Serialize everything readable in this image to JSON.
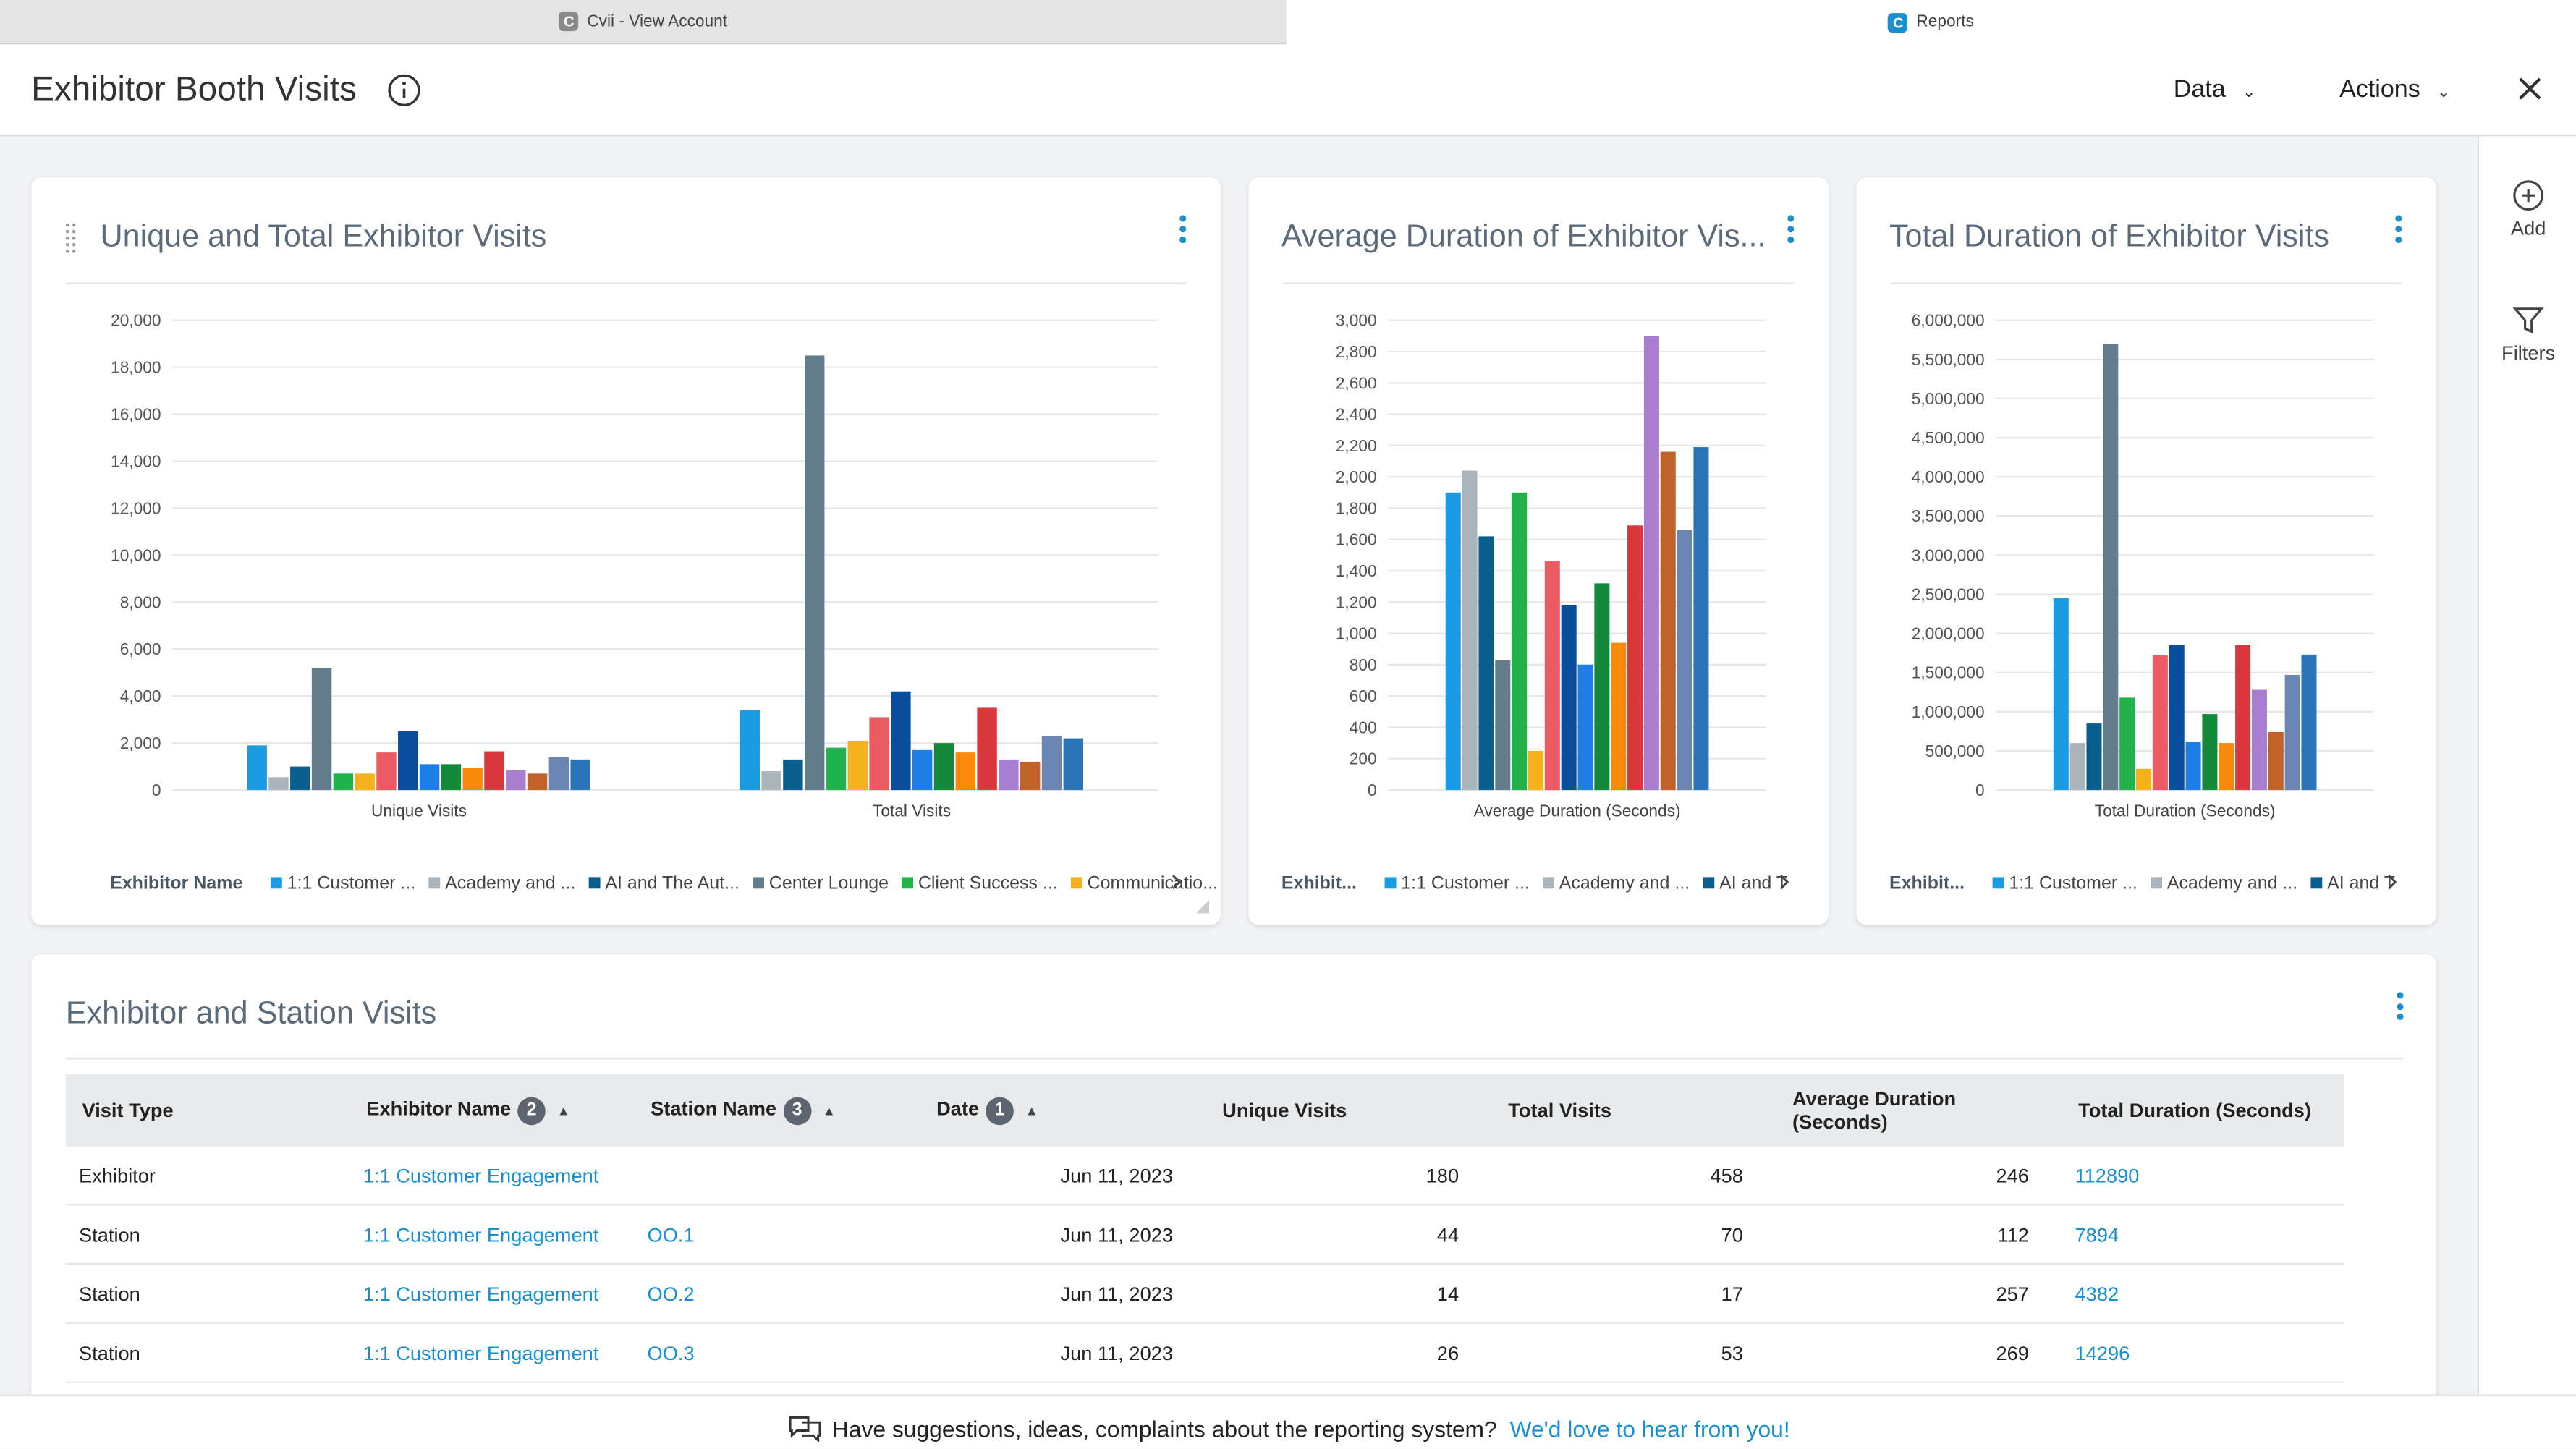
{
  "tabs": [
    {
      "label": "Cvii - View Account",
      "icon": "C"
    },
    {
      "label": "Reports",
      "icon": "C"
    }
  ],
  "header": {
    "title": "Exhibitor Booth Visits",
    "menus": [
      "Data",
      "Actions"
    ]
  },
  "sidebar": [
    {
      "label": "Add"
    },
    {
      "label": "Filters"
    }
  ],
  "chart_data": [
    {
      "type": "bar",
      "title": "Unique and Total Exhibitor Visits",
      "categories": [
        "Unique Visits",
        "Total Visits"
      ],
      "ylim": [
        0,
        20000
      ],
      "yticks": [
        0,
        {
          "value": 2000,
          "label": "2,000"
        },
        {
          "value": 4000,
          "label": "4,000"
        },
        {
          "value": 6000,
          "label": "6,000"
        },
        {
          "value": 8000,
          "label": "8,000"
        },
        {
          "value": 10000,
          "label": "10,000"
        },
        {
          "value": 12000,
          "label": "12,000"
        },
        {
          "value": 14000,
          "label": "14,000"
        },
        {
          "value": 16000,
          "label": "16,000"
        },
        {
          "value": 18000,
          "label": "18,000"
        },
        {
          "value": 20000,
          "label": "20,000"
        }
      ],
      "grid": true,
      "legend_title": "Exhibitor Name",
      "series": [
        {
          "name": "1:1 Customer ...",
          "color": "#1a9ae0",
          "values": [
            1900,
            3400
          ]
        },
        {
          "name": "Academy and ...",
          "color": "#a9b4bd",
          "values": [
            550,
            800
          ]
        },
        {
          "name": "AI and The Aut...",
          "color": "#0a5e8c",
          "values": [
            1000,
            1300
          ]
        },
        {
          "name": "Center Lounge",
          "color": "#627c8c",
          "values": [
            5200,
            18500
          ]
        },
        {
          "name": "Client Success ...",
          "color": "#21b24b",
          "values": [
            700,
            1800
          ]
        },
        {
          "name": "Communicatio...",
          "color": "#f3b21b",
          "values": [
            700,
            2100
          ]
        },
        {
          "color": "#eb5b63",
          "values": [
            1600,
            3100
          ]
        },
        {
          "color": "#0a4f9e",
          "values": [
            2500,
            4200
          ]
        },
        {
          "color": "#1e7ee6",
          "values": [
            1100,
            1700
          ]
        },
        {
          "color": "#13893a",
          "values": [
            1100,
            2000
          ]
        },
        {
          "color": "#f98a0b",
          "values": [
            950,
            1600
          ]
        },
        {
          "color": "#d9373b",
          "values": [
            1650,
            3500
          ]
        },
        {
          "color": "#a97ed1",
          "values": [
            850,
            1300
          ]
        },
        {
          "color": "#c0622a",
          "values": [
            700,
            1200
          ]
        },
        {
          "color": "#6b86b5",
          "values": [
            1400,
            2300
          ]
        },
        {
          "color": "#2a74b7",
          "values": [
            1300,
            2200
          ]
        }
      ]
    },
    {
      "type": "bar",
      "title": "Average Duration of Exhibitor Vis...",
      "categories": [
        "Average Duration (Seconds)"
      ],
      "ylim": [
        0,
        3000
      ],
      "yticks": [
        0,
        200,
        400,
        600,
        800,
        {
          "value": 1000,
          "label": "1,000"
        },
        {
          "value": 1200,
          "label": "1,200"
        },
        {
          "value": 1400,
          "label": "1,400"
        },
        {
          "value": 1600,
          "label": "1,600"
        },
        {
          "value": 1800,
          "label": "1,800"
        },
        {
          "value": 2000,
          "label": "2,000"
        },
        {
          "value": 2200,
          "label": "2,200"
        },
        {
          "value": 2400,
          "label": "2,400"
        },
        {
          "value": 2600,
          "label": "2,600"
        },
        {
          "value": 2800,
          "label": "2,800"
        },
        {
          "value": 3000,
          "label": "3,000"
        }
      ],
      "grid": true,
      "legend_title": "Exhibit...",
      "series": [
        {
          "name": "1:1 Customer ...",
          "color": "#1a9ae0",
          "values": [
            1900
          ]
        },
        {
          "name": "Academy and ...",
          "color": "#a9b4bd",
          "values": [
            2040
          ]
        },
        {
          "name": "AI and T",
          "color": "#0a5e8c",
          "values": [
            1620
          ]
        },
        {
          "color": "#627c8c",
          "values": [
            830
          ]
        },
        {
          "color": "#21b24b",
          "values": [
            1900
          ]
        },
        {
          "color": "#f3b21b",
          "values": [
            250
          ]
        },
        {
          "color": "#eb5b63",
          "values": [
            1460
          ]
        },
        {
          "color": "#0a4f9e",
          "values": [
            1180
          ]
        },
        {
          "color": "#1e7ee6",
          "values": [
            800
          ]
        },
        {
          "color": "#13893a",
          "values": [
            1320
          ]
        },
        {
          "color": "#f98a0b",
          "values": [
            940
          ]
        },
        {
          "color": "#d9373b",
          "values": [
            1690
          ]
        },
        {
          "color": "#a97ed1",
          "values": [
            2900
          ]
        },
        {
          "color": "#c0622a",
          "values": [
            2160
          ]
        },
        {
          "color": "#6b86b5",
          "values": [
            1660
          ]
        },
        {
          "color": "#2a74b7",
          "values": [
            2190
          ]
        }
      ]
    },
    {
      "type": "bar",
      "title": "Total Duration of Exhibitor Visits",
      "categories": [
        "Total Duration (Seconds)"
      ],
      "ylim": [
        0,
        6000000
      ],
      "yticks": [
        0,
        {
          "value": 500000,
          "label": "500,000"
        },
        {
          "value": 1000000,
          "label": "1,000,000"
        },
        {
          "value": 1500000,
          "label": "1,500,000"
        },
        {
          "value": 2000000,
          "label": "2,000,000"
        },
        {
          "value": 2500000,
          "label": "2,500,000"
        },
        {
          "value": 3000000,
          "label": "3,000,000"
        },
        {
          "value": 3500000,
          "label": "3,500,000"
        },
        {
          "value": 4000000,
          "label": "4,000,000"
        },
        {
          "value": 4500000,
          "label": "4,500,000"
        },
        {
          "value": 5000000,
          "label": "5,000,000"
        },
        {
          "value": 5500000,
          "label": "5,500,000"
        },
        {
          "value": 6000000,
          "label": "6,000,000"
        }
      ],
      "grid": true,
      "legend_title": "Exhibit...",
      "series": [
        {
          "name": "1:1 Customer ...",
          "color": "#1a9ae0",
          "values": [
            2450000
          ]
        },
        {
          "name": "Academy and ...",
          "color": "#a9b4bd",
          "values": [
            600000
          ]
        },
        {
          "name": "AI and T",
          "color": "#0a5e8c",
          "values": [
            850000
          ]
        },
        {
          "color": "#627c8c",
          "values": [
            5700000
          ]
        },
        {
          "color": "#21b24b",
          "values": [
            1180000
          ]
        },
        {
          "color": "#f3b21b",
          "values": [
            270000
          ]
        },
        {
          "color": "#eb5b63",
          "values": [
            1720000
          ]
        },
        {
          "color": "#0a4f9e",
          "values": [
            1850000
          ]
        },
        {
          "color": "#1e7ee6",
          "values": [
            620000
          ]
        },
        {
          "color": "#13893a",
          "values": [
            970000
          ]
        },
        {
          "color": "#f98a0b",
          "values": [
            600000
          ]
        },
        {
          "color": "#d9373b",
          "values": [
            1850000
          ]
        },
        {
          "color": "#a97ed1",
          "values": [
            1280000
          ]
        },
        {
          "color": "#c0622a",
          "values": [
            740000
          ]
        },
        {
          "color": "#6b86b5",
          "values": [
            1470000
          ]
        },
        {
          "color": "#2a74b7",
          "values": [
            1730000
          ]
        }
      ]
    }
  ],
  "table": {
    "title": "Exhibitor and Station Visits",
    "columns": [
      {
        "label": "Visit Type"
      },
      {
        "label": "Exhibitor Name",
        "sort": 2
      },
      {
        "label": "Station Name",
        "sort": 3
      },
      {
        "label": "Date",
        "sort": 1
      },
      {
        "label": "Unique Visits"
      },
      {
        "label": "Total Visits"
      },
      {
        "label": "Average Duration (Seconds)"
      },
      {
        "label": "Total Duration (Seconds)"
      }
    ],
    "rows": [
      [
        "Exhibitor",
        "1:1 Customer Engagement",
        null,
        "Jun 11, 2023",
        180,
        458,
        246,
        112890
      ],
      [
        "Station",
        "1:1 Customer Engagement",
        "OO.1",
        "Jun 11, 2023",
        44,
        70,
        112,
        7894
      ],
      [
        "Station",
        "1:1 Customer Engagement",
        "OO.2",
        "Jun 11, 2023",
        14,
        17,
        257,
        4382
      ],
      [
        "Station",
        "1:1 Customer Engagement",
        "OO.3",
        "Jun 11, 2023",
        26,
        53,
        269,
        14296
      ]
    ]
  },
  "footer": {
    "text": "Have suggestions, ideas, complaints about the reporting system?",
    "link": "We'd love to hear from you!"
  }
}
